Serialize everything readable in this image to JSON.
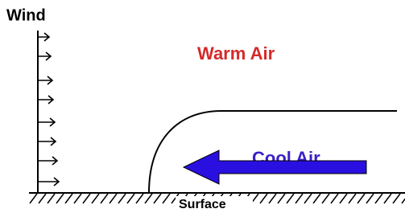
{
  "labels": {
    "wind": "Wind",
    "warm_air": "Warm Air",
    "cool_air": "Cool Air",
    "surface": "Surface"
  }
}
